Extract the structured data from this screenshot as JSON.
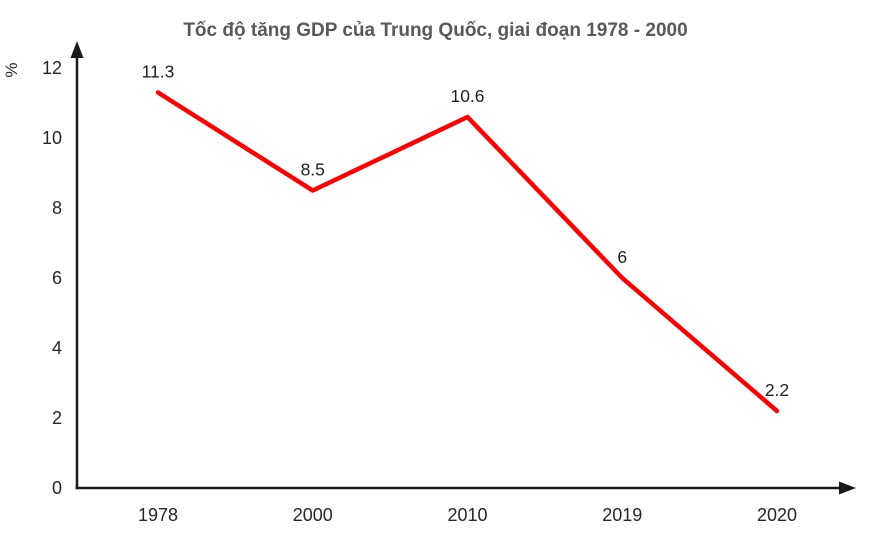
{
  "chart_data": {
    "type": "line",
    "title": "Tốc độ tăng GDP của Trung Quốc, giai đoạn 1978 - 2000",
    "ylabel": "%",
    "xlabel": "",
    "categories": [
      "1978",
      "2000",
      "2010",
      "2019",
      "2020"
    ],
    "values": [
      11.3,
      8.5,
      10.6,
      6,
      2.2
    ],
    "point_labels": [
      "11.3",
      "8.5",
      "10.6",
      "6",
      "2.2"
    ],
    "yticks": [
      0,
      2,
      4,
      6,
      8,
      10,
      12
    ],
    "ylim": [
      0,
      12
    ],
    "grid": false,
    "legend_position": "none",
    "colors": {
      "line": "#ff0000",
      "axis": "#1a1a1a",
      "title": "#595959",
      "tick": "#262626",
      "point_label": "#1f1f1f"
    }
  }
}
